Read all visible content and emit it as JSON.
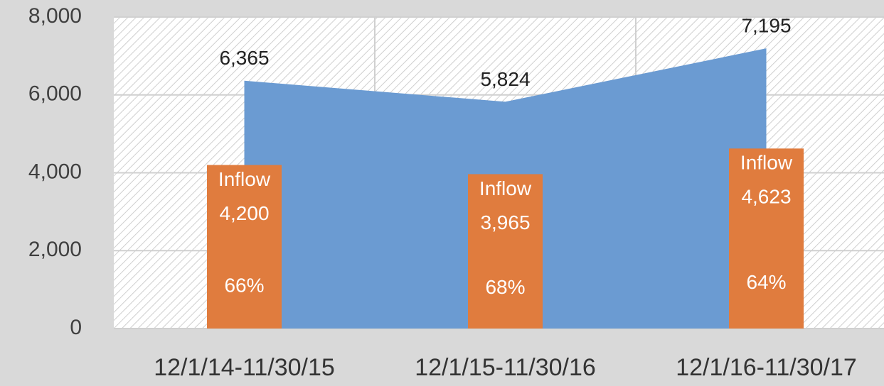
{
  "chart_data": {
    "type": "combo",
    "categories": [
      "12/1/14-11/30/15",
      "12/1/15-11/30/16",
      "12/1/16-11/30/17"
    ],
    "series": [
      {
        "type": "area",
        "color": "#6b9bd2",
        "values": [
          6365,
          5824,
          7195
        ],
        "value_labels": [
          "6,365",
          "5,824",
          "7,195"
        ]
      },
      {
        "type": "bar",
        "name": "Inflow",
        "color": "#e07c3e",
        "values": [
          4200,
          3965,
          4623
        ],
        "value_labels": [
          "4,200",
          "3,965",
          "4,623"
        ],
        "percent": [
          66,
          68,
          64
        ],
        "percent_labels": [
          "66%",
          "68%",
          "64%"
        ]
      }
    ],
    "ylim": [
      0,
      8000
    ],
    "yticks": [
      0,
      {
        "value": 2000,
        "label": "2,000"
      },
      {
        "value": 4000,
        "label": "4,000"
      },
      {
        "value": 6000,
        "label": "6,000"
      },
      {
        "value": 8000,
        "label": "8,000"
      }
    ],
    "grid": true
  }
}
